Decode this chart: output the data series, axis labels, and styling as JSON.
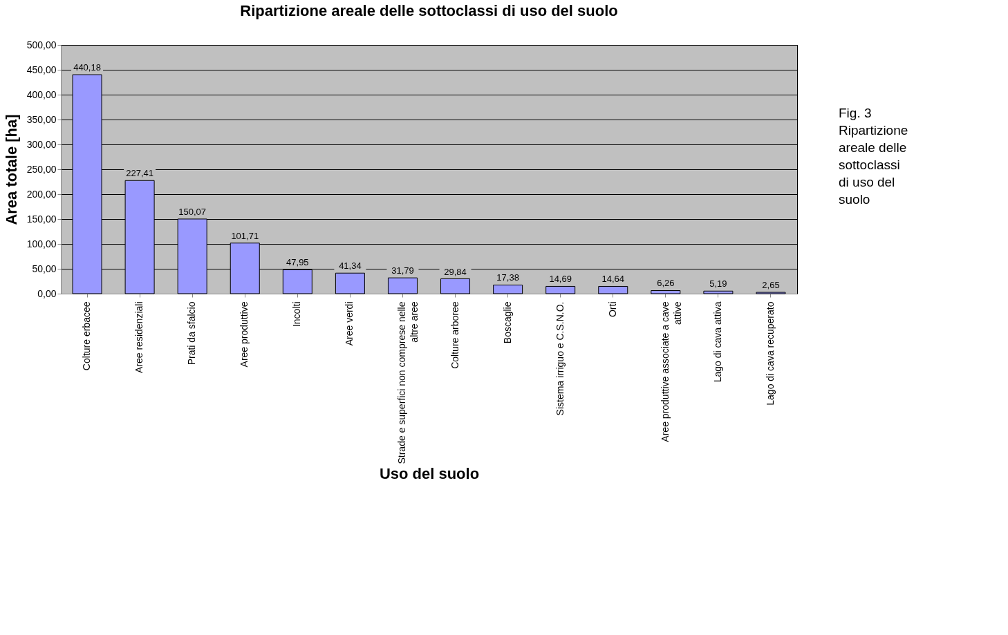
{
  "chart_data": {
    "type": "bar",
    "title": "Ripartizione areale delle sottoclassi di uso del suolo",
    "xlabel": "Uso del suolo",
    "ylabel": "Area totale [ha]",
    "categories": [
      "Colture erbacee",
      "Aree residenziali",
      "Prati da sfalcio",
      "Aree produttive",
      "Incolti",
      "Aree verdi",
      "Strade e superfici non comprese nelle altre aree",
      "Colture arboree",
      "Boscaglie",
      "Sistema irriguo e C.S.N.O.",
      "Orti",
      "Aree produttive associate a cave attive",
      "Lago di cava attiva",
      "Lago di cava recuperato"
    ],
    "values": [
      440.18,
      227.41,
      150.07,
      101.71,
      47.95,
      41.34,
      31.79,
      29.84,
      17.38,
      14.69,
      14.64,
      6.26,
      5.19,
      2.65
    ],
    "value_labels": [
      "440,18",
      "227,41",
      "150,07",
      "101,71",
      "47,95",
      "41,34",
      "31,79",
      "29,84",
      "17,38",
      "14,69",
      "14,64",
      "6,26",
      "5,19",
      "2,65"
    ],
    "color": "#9999ff",
    "ylim": [
      0,
      500
    ],
    "yticks": [
      {
        "value": 0,
        "label": "0,00"
      },
      {
        "value": 50,
        "label": "50,00"
      },
      {
        "value": 100,
        "label": "100,00"
      },
      {
        "value": 150,
        "label": "150,00"
      },
      {
        "value": 200,
        "label": "200,00"
      },
      {
        "value": 250,
        "label": "250,00"
      },
      {
        "value": 300,
        "label": "300,00"
      },
      {
        "value": 350,
        "label": "350,00"
      },
      {
        "value": 400,
        "label": "400,00"
      },
      {
        "value": 450,
        "label": "450,00"
      },
      {
        "value": 500,
        "label": "500,00"
      }
    ],
    "grid": "y",
    "annotations": [
      "Fig. 3 Ripartizione areale delle sottoclassi di uso del suolo"
    ]
  }
}
